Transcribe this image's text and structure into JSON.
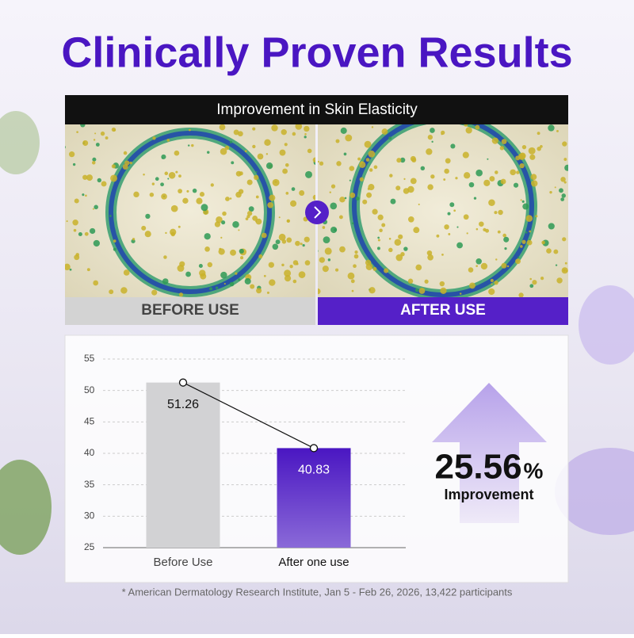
{
  "header": {
    "title": "Clinically Proven Results"
  },
  "panel": {
    "title": "Improvement in Skin Elasticity",
    "before_label": "BEFORE USE",
    "after_label": "AFTER USE"
  },
  "chart_data": {
    "type": "bar",
    "categories": [
      "Before Use",
      "After one use"
    ],
    "series": [
      {
        "name": "Skin Elasticity",
        "values": [
          51.26,
          40.83
        ],
        "colors": [
          "#d2d2d4",
          "#5520c8"
        ]
      }
    ],
    "ylim": [
      25,
      55
    ],
    "yticks": [
      25,
      30,
      35,
      40,
      45,
      50,
      55
    ],
    "grid": true,
    "connect_line": true
  },
  "callout": {
    "number": "25.56",
    "unit": "%",
    "label": "Improvement"
  },
  "footnote": "* American Dermatology Research Institute, Jan 5 - Feb 26, 2026, 13,422 participants"
}
